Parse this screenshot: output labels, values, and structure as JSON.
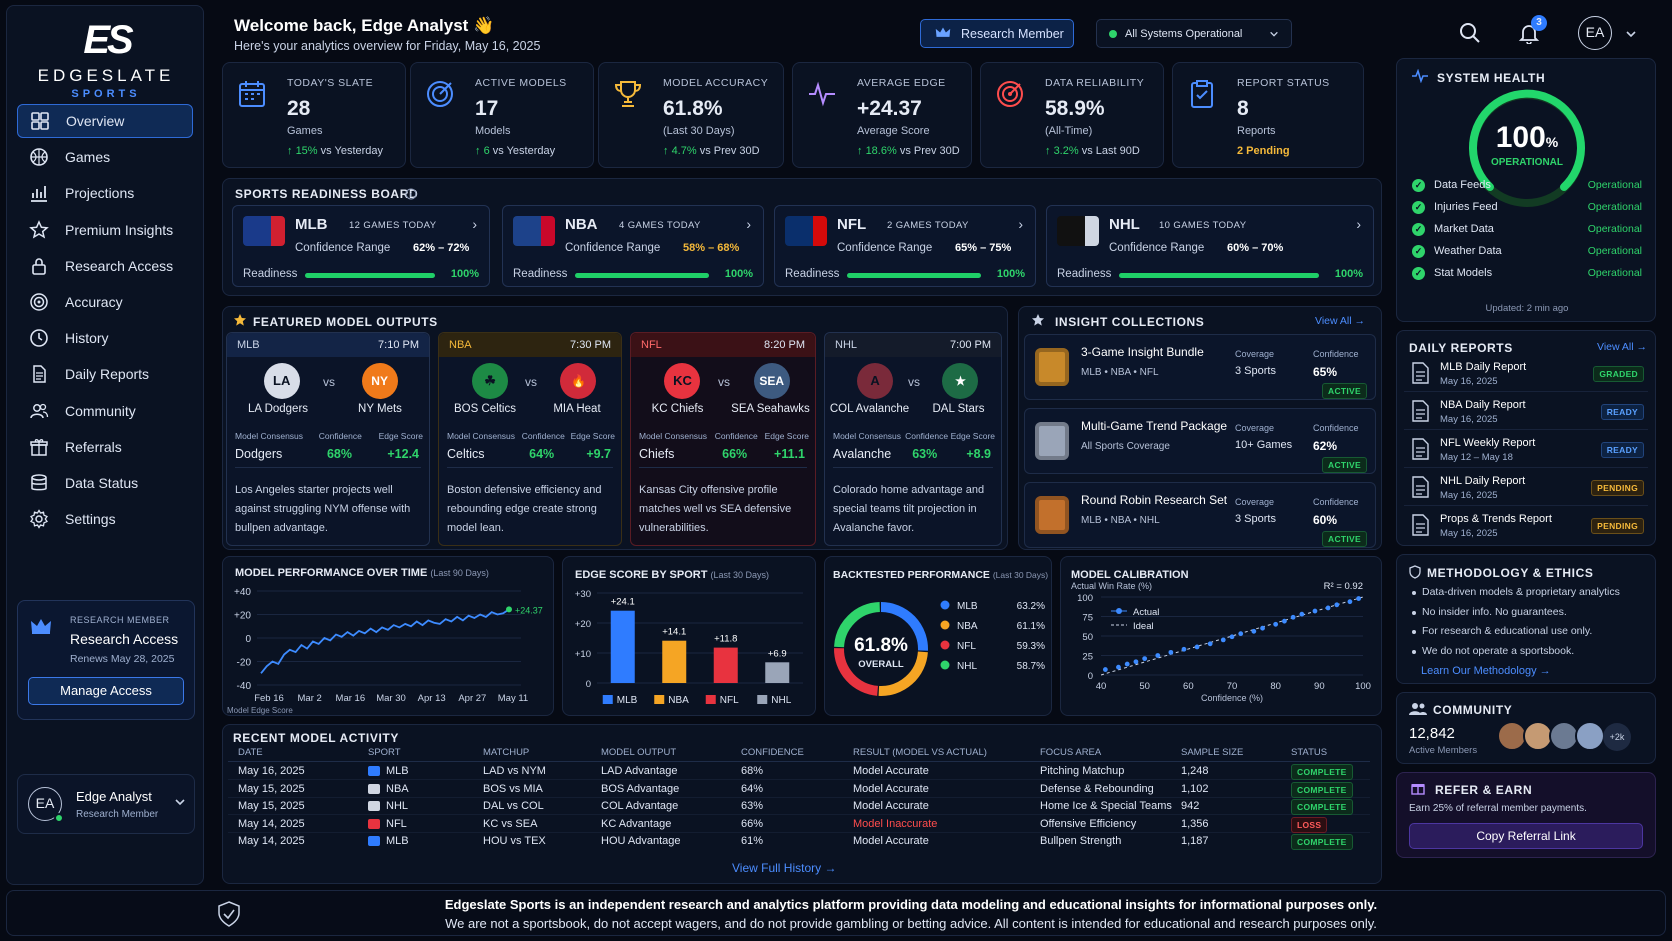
{
  "brand": {
    "logo": "ES",
    "name": "EDGESLATE",
    "sub": "SPORTS"
  },
  "nav": [
    {
      "label": "Overview",
      "icon": "grid-icon"
    },
    {
      "label": "Games",
      "icon": "ball-icon"
    },
    {
      "label": "Projections",
      "icon": "chart-icon"
    },
    {
      "label": "Premium Insights",
      "icon": "star-icon"
    },
    {
      "label": "Research Access",
      "icon": "lock-icon"
    },
    {
      "label": "Accuracy",
      "icon": "target-icon"
    },
    {
      "label": "History",
      "icon": "clock-icon"
    },
    {
      "label": "Daily Reports",
      "icon": "document-icon"
    },
    {
      "label": "Community",
      "icon": "users-icon"
    },
    {
      "label": "Referrals",
      "icon": "gift-icon"
    },
    {
      "label": "Data Status",
      "icon": "database-icon"
    },
    {
      "label": "Settings",
      "icon": "gear-icon"
    }
  ],
  "membership": {
    "tier": "RESEARCH MEMBER",
    "title": "Research Access",
    "renews": "Renews May 28, 2025",
    "button": "Manage Access"
  },
  "user": {
    "initials": "EA",
    "name": "Edge Analyst",
    "role": "Research Member"
  },
  "header": {
    "welcome": "Welcome back, Edge Analyst 👋",
    "subtitle": "Here's your analytics overview for Friday, May 16, 2025",
    "member_button": "Research Member",
    "status": "All Systems Operational",
    "notif_count": "3",
    "avatar": "EA"
  },
  "stats": [
    {
      "title": "TODAY'S SLATE",
      "value": "28",
      "sub": "Games",
      "delta": "15%",
      "delta_text": "vs Yesterday"
    },
    {
      "title": "ACTIVE MODELS",
      "value": "17",
      "sub": "Models",
      "delta": "6",
      "delta_text": "vs Yesterday"
    },
    {
      "title": "MODEL ACCURACY",
      "value": "61.8%",
      "sub": "(Last 30 Days)",
      "delta": "4.7%",
      "delta_text": "vs Prev 30D"
    },
    {
      "title": "AVERAGE EDGE",
      "value": "+24.37",
      "sub": "Average Score",
      "delta": "18.6%",
      "delta_text": "vs Prev 30D"
    },
    {
      "title": "DATA RELIABILITY",
      "value": "58.9%",
      "sub": "(All-Time)",
      "delta": "3.2%",
      "delta_text": "vs Last 90D"
    },
    {
      "title": "REPORT STATUS",
      "value": "8",
      "sub": "Reports",
      "delta": "",
      "delta_text": "2 Pending"
    }
  ],
  "readiness": {
    "title": "SPORTS READINESS BOARD",
    "cards": [
      {
        "league": "MLB",
        "games": "12 GAMES TODAY",
        "range_label": "Confidence Range",
        "range": "62% – 72%",
        "ready_label": "Readiness",
        "ready": "100%",
        "progress": 1.0
      },
      {
        "league": "NBA",
        "games": "4 GAMES TODAY",
        "range_label": "Confidence Range",
        "range": "58% – 68%",
        "ready_label": "Readiness",
        "ready": "100%",
        "progress": 1.0
      },
      {
        "league": "NFL",
        "games": "2 GAMES TODAY",
        "range_label": "Confidence Range",
        "range": "65% – 75%",
        "ready_label": "Readiness",
        "ready": "100%",
        "progress": 1.0
      },
      {
        "league": "NHL",
        "games": "10 GAMES TODAY",
        "range_label": "Confidence Range",
        "range": "60% – 70%",
        "ready_label": "Readiness",
        "ready": "100%",
        "progress": 1.0
      }
    ]
  },
  "featured": {
    "title": "FEATURED MODEL OUTPUTS",
    "labels": {
      "consensus": "Model Consensus",
      "confidence": "Confidence",
      "edge": "Edge Score"
    },
    "cards": [
      {
        "league": "MLB",
        "time": "7:10 PM",
        "home": "LA Dodgers",
        "away": "NY Mets",
        "logo_h": "LA",
        "logo_a": "NY",
        "vs": "vs",
        "pick": "Dodgers",
        "conf": "68%",
        "edge": "+12.4",
        "note": "Los Angeles starter projects well against struggling NYM offense with bullpen advantage."
      },
      {
        "league": "NBA",
        "time": "7:30 PM",
        "home": "BOS Celtics",
        "away": "MIA Heat",
        "logo_h": "☘",
        "logo_a": "🔥",
        "vs": "vs",
        "pick": "Celtics",
        "conf": "64%",
        "edge": "+9.7",
        "note": "Boston defensive efficiency and rebounding edge create strong model lean."
      },
      {
        "league": "NFL",
        "time": "8:20 PM",
        "home": "KC Chiefs",
        "away": "SEA Seahawks",
        "logo_h": "KC",
        "logo_a": "SEA",
        "vs": "vs",
        "pick": "Chiefs",
        "conf": "66%",
        "edge": "+11.1",
        "note": "Kansas City offensive profile matches well vs SEA defensive vulnerabilities."
      },
      {
        "league": "NHL",
        "time": "7:00 PM",
        "home": "COL Avalanche",
        "away": "DAL Stars",
        "logo_h": "A",
        "logo_a": "★",
        "vs": "vs",
        "pick": "Avalanche",
        "conf": "63%",
        "edge": "+8.9",
        "note": "Colorado home advantage and special teams tilt projection in Avalanche favor."
      }
    ]
  },
  "insights": {
    "title": "INSIGHT COLLECTIONS",
    "view_all": "View All",
    "items": [
      {
        "name": "3-Game Insight Bundle",
        "sub": "MLB • NBA • NFL",
        "cov_label": "Coverage",
        "cov": "3 Sports",
        "conf_label": "Confidence",
        "conf": "65%",
        "status": "ACTIVE"
      },
      {
        "name": "Multi-Game Trend Package",
        "sub": "All Sports Coverage",
        "cov_label": "Coverage",
        "cov": "10+ Games",
        "conf_label": "Confidence",
        "conf": "62%",
        "status": "ACTIVE"
      },
      {
        "name": "Round Robin Research Set",
        "sub": "MLB • NBA • NHL",
        "cov_label": "Coverage",
        "cov": "3 Sports",
        "conf_label": "Confidence",
        "conf": "60%",
        "status": "ACTIVE"
      }
    ]
  },
  "health": {
    "title": "SYSTEM HEALTH",
    "value": "100%",
    "value_num": "100",
    "pct": "%",
    "label": "OPERATIONAL",
    "updated": "Updated: 2 min ago",
    "items": [
      {
        "name": "Data Feeds",
        "status": "Operational"
      },
      {
        "name": "Injuries Feed",
        "status": "Operational"
      },
      {
        "name": "Market Data",
        "status": "Operational"
      },
      {
        "name": "Weather Data",
        "status": "Operational"
      },
      {
        "name": "Stat Models",
        "status": "Operational"
      }
    ]
  },
  "reports": {
    "title": "DAILY REPORTS",
    "view_all": "View All",
    "items": [
      {
        "name": "MLB Daily Report",
        "date": "May 16, 2025",
        "status": "GRADED",
        "kind": "green"
      },
      {
        "name": "NBA Daily Report",
        "date": "May 16, 2025",
        "status": "READY",
        "kind": "blue"
      },
      {
        "name": "NFL Weekly Report",
        "date": "May 12 – May 18",
        "status": "READY",
        "kind": "blue"
      },
      {
        "name": "NHL Daily Report",
        "date": "May 16, 2025",
        "status": "PENDING",
        "kind": "gold"
      },
      {
        "name": "Props & Trends Report",
        "date": "May 16, 2025",
        "status": "PENDING",
        "kind": "gold"
      }
    ]
  },
  "methodology": {
    "title": "METHODOLOGY & ETHICS",
    "items": [
      "Data-driven models & proprietary analytics",
      "No insider info. No guarantees.",
      "For research & educational use only.",
      "We do not operate a sportsbook."
    ],
    "link": "Learn Our Methodology"
  },
  "community": {
    "title": "COMMUNITY",
    "members": "12,842",
    "members_label": "Active Members",
    "more": "+2k"
  },
  "refer": {
    "title": "REFER & EARN",
    "text": "Earn 25% of referral member payments.",
    "button": "Copy Referral Link"
  },
  "chart_data": [
    {
      "type": "line",
      "title": "MODEL PERFORMANCE OVER TIME",
      "subtitle": "(Last 90 Days)",
      "ylabel": "Model Edge Score",
      "ylim": [
        -40,
        40
      ],
      "yticks": [
        "+40",
        "+20",
        "0",
        "-20",
        "-40"
      ],
      "xticks": [
        "Feb 16",
        "Mar 2",
        "Mar 16",
        "Mar 30",
        "Apr 13",
        "Apr 27",
        "May 11"
      ],
      "end_label": "+24.37",
      "values": [
        -30,
        -24,
        -20,
        -22,
        -14,
        -10,
        -12,
        -6,
        -9,
        -3,
        -5,
        0,
        -2,
        3,
        1,
        5,
        2,
        6,
        4,
        8,
        5,
        9,
        7,
        11,
        9,
        12,
        10,
        14,
        11,
        15,
        13,
        12,
        16,
        14,
        18,
        15,
        19,
        17,
        20,
        18,
        22,
        20,
        21,
        24.37
      ]
    },
    {
      "type": "bar",
      "title": "EDGE SCORE BY SPORT",
      "subtitle": "(Last 30 Days)",
      "categories": [
        "MLB",
        "NBA",
        "NFL",
        "NHL"
      ],
      "values": [
        24.1,
        14.1,
        11.8,
        6.9
      ],
      "labels": [
        "+24.1",
        "+14.1",
        "+11.8",
        "+6.9"
      ],
      "yticks": [
        "+30",
        "+20",
        "+10",
        "0"
      ],
      "ylim": [
        0,
        30
      ],
      "colors": [
        "#2f7cff",
        "#f5a524",
        "#e8333f",
        "#9aa5b8"
      ]
    },
    {
      "type": "pie",
      "title": "BACKTESTED PERFORMANCE",
      "subtitle": "(Last 30 Days)",
      "center_value": "61.8%",
      "center_label": "OVERALL",
      "categories": [
        "MLB",
        "NBA",
        "NFL",
        "NHL"
      ],
      "values": [
        63.2,
        61.1,
        59.3,
        58.7
      ],
      "labels": [
        "63.2%",
        "61.1%",
        "59.3%",
        "58.7%"
      ],
      "colors": [
        "#2f7cff",
        "#f5a524",
        "#e8333f",
        "#2fd46b"
      ]
    },
    {
      "type": "scatter",
      "title": "MODEL CALIBRATION",
      "ylabel": "Actual Win Rate (%)",
      "xlabel": "Confidence (%)",
      "r2": "R² = 0.92",
      "legend": [
        "Actual",
        "Ideal"
      ],
      "xticks": [
        "40",
        "50",
        "60",
        "70",
        "80",
        "90",
        "100"
      ],
      "yticks": [
        "100",
        "75",
        "50",
        "25",
        "0"
      ],
      "xlim": [
        40,
        100
      ],
      "ylim": [
        0,
        100
      ],
      "points": [
        [
          41,
          7
        ],
        [
          44,
          10
        ],
        [
          46,
          14
        ],
        [
          48,
          17
        ],
        [
          50,
          21
        ],
        [
          53,
          25
        ],
        [
          56,
          29
        ],
        [
          59,
          33
        ],
        [
          62,
          36
        ],
        [
          65,
          40
        ],
        [
          68,
          45
        ],
        [
          70,
          49
        ],
        [
          72,
          53
        ],
        [
          75,
          56
        ],
        [
          77,
          60
        ],
        [
          80,
          65
        ],
        [
          82,
          69
        ],
        [
          84,
          74
        ],
        [
          86,
          78
        ],
        [
          89,
          82
        ],
        [
          92,
          86
        ],
        [
          94,
          90
        ],
        [
          97,
          94
        ],
        [
          99,
          98
        ]
      ]
    }
  ],
  "activity": {
    "title": "RECENT MODEL ACTIVITY",
    "columns": [
      "DATE",
      "SPORT",
      "MATCHUP",
      "MODEL OUTPUT",
      "CONFIDENCE",
      "RESULT (MODEL VS ACTUAL)",
      "FOCUS AREA",
      "SAMPLE SIZE",
      "STATUS"
    ],
    "rows": [
      {
        "date": "May 16, 2025",
        "sport": "MLB",
        "matchup": "LAD vs NYM",
        "output": "LAD Advantage",
        "conf": "68%",
        "result": "Model Accurate",
        "focus": "Pitching Matchup",
        "sample": "1,248",
        "status": "COMPLETE",
        "bad": false
      },
      {
        "date": "May 15, 2025",
        "sport": "NBA",
        "matchup": "BOS vs MIA",
        "output": "BOS Advantage",
        "conf": "64%",
        "result": "Model Accurate",
        "focus": "Defense & Rebounding",
        "sample": "1,102",
        "status": "COMPLETE",
        "bad": false
      },
      {
        "date": "May 15, 2025",
        "sport": "NHL",
        "matchup": "DAL vs COL",
        "output": "COL Advantage",
        "conf": "63%",
        "result": "Model Accurate",
        "focus": "Home Ice & Special Teams",
        "sample": "942",
        "status": "COMPLETE",
        "bad": false
      },
      {
        "date": "May 14, 2025",
        "sport": "NFL",
        "matchup": "KC vs SEA",
        "output": "KC Advantage",
        "conf": "66%",
        "result": "Model Inaccurate",
        "focus": "Offensive Efficiency",
        "sample": "1,356",
        "status": "LOSS",
        "bad": true
      },
      {
        "date": "May 14, 2025",
        "sport": "MLB",
        "matchup": "HOU vs TEX",
        "output": "HOU Advantage",
        "conf": "61%",
        "result": "Model Accurate",
        "focus": "Bullpen Strength",
        "sample": "1,187",
        "status": "COMPLETE",
        "bad": false
      }
    ],
    "link": "View Full History"
  },
  "footer": {
    "line1": "Edgeslate Sports is an independent research and analytics platform providing data modeling and educational insights for informational purposes only.",
    "line2": "We are not a sportsbook, do not accept wagers, and do not provide gambling or betting advice. All content is intended for educational and research purposes only."
  }
}
